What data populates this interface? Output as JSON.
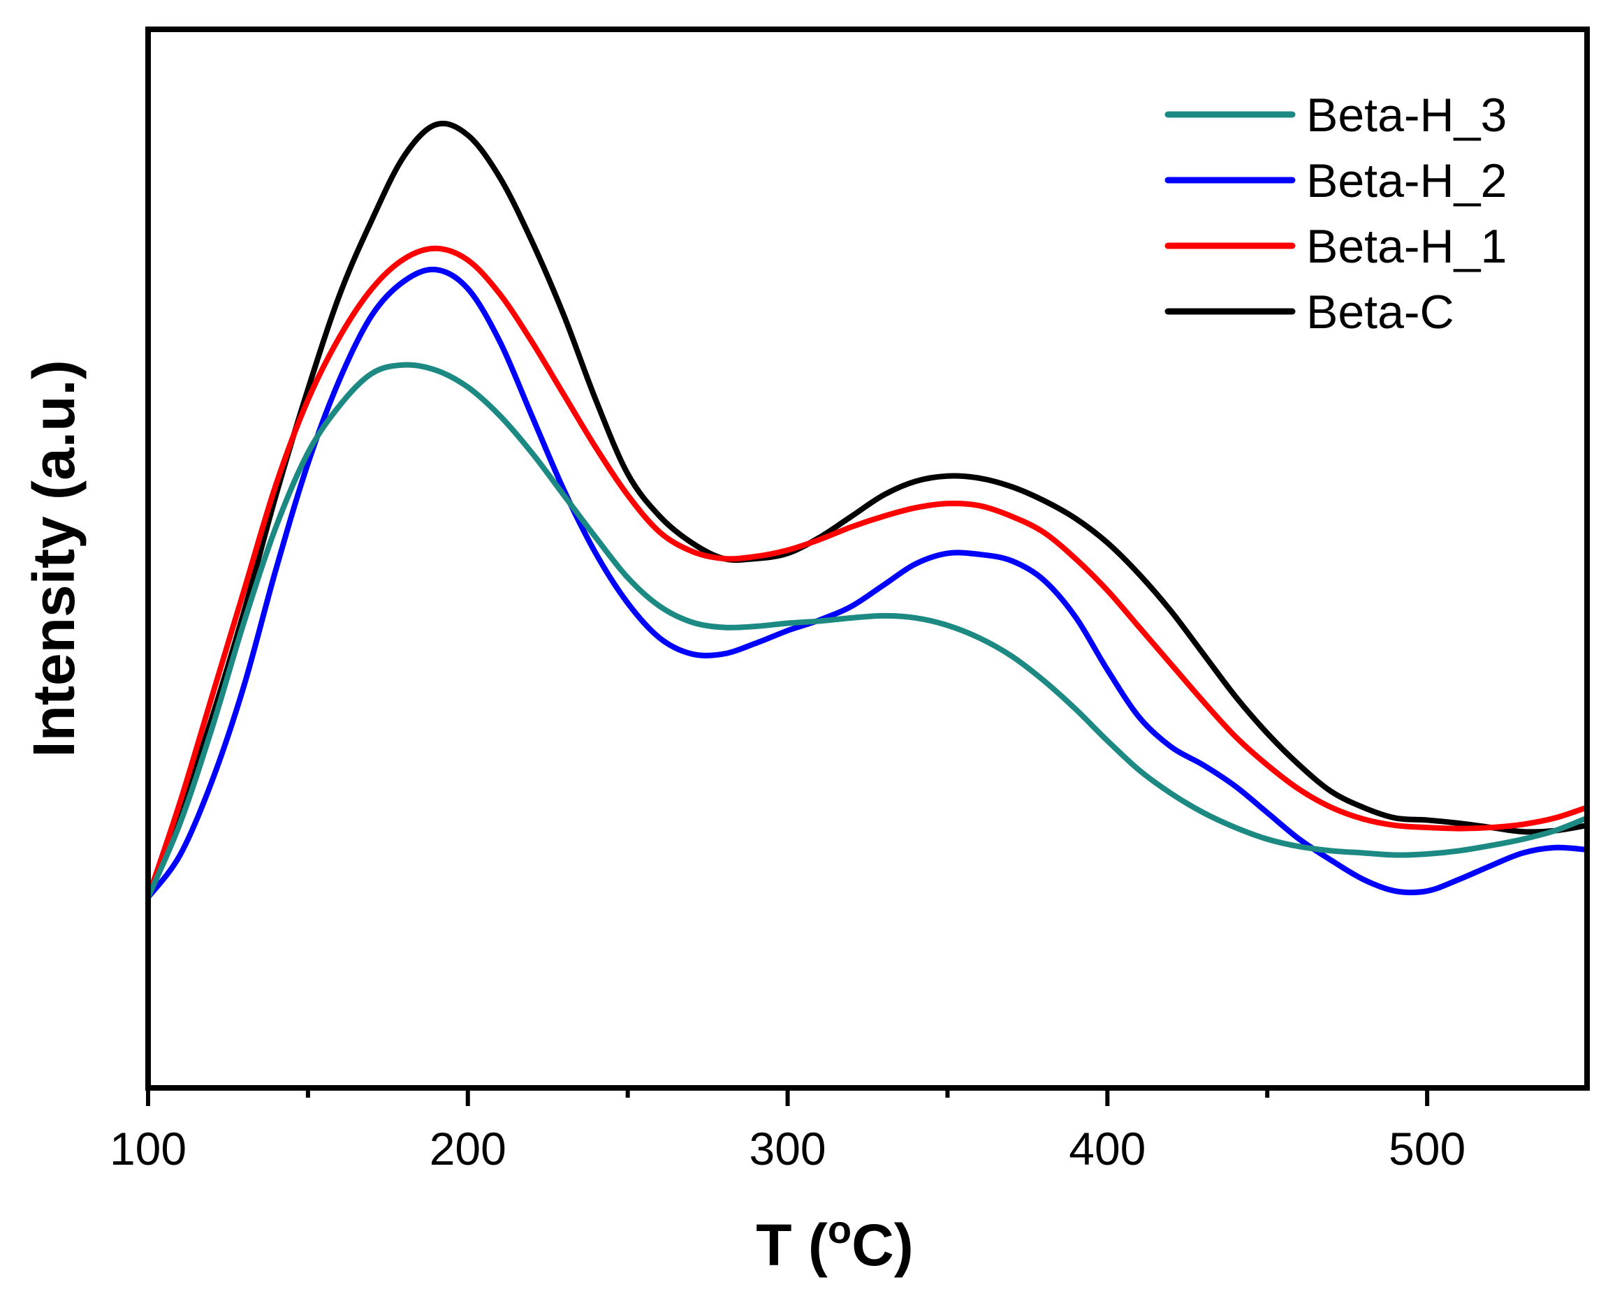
{
  "chart_data": {
    "type": "line",
    "title": "",
    "xlabel": "T (°C)",
    "xlabel_main": "T (",
    "xlabel_sup": "o",
    "xlabel_end": "C)",
    "ylabel": "Intensity (a.u.)",
    "xlim": [
      100,
      550
    ],
    "ylim": [
      0,
      100
    ],
    "xticks": [
      100,
      200,
      300,
      400,
      500
    ],
    "xtick_labels": [
      "100",
      "200",
      "300",
      "400",
      "500"
    ],
    "minor_xticks": [
      150,
      250,
      350,
      450
    ],
    "yticks_shown": false,
    "grid": false,
    "legend_position": "top-right",
    "legend_order": [
      3,
      2,
      1,
      0
    ],
    "series": [
      {
        "name": "Beta-C",
        "color": "#000000",
        "points": [
          [
            100,
            18
          ],
          [
            110,
            26
          ],
          [
            120,
            35
          ],
          [
            130,
            45
          ],
          [
            140,
            56
          ],
          [
            150,
            66
          ],
          [
            160,
            75
          ],
          [
            170,
            82
          ],
          [
            180,
            88
          ],
          [
            190,
            91
          ],
          [
            200,
            90
          ],
          [
            210,
            86
          ],
          [
            220,
            80
          ],
          [
            230,
            73
          ],
          [
            240,
            65
          ],
          [
            250,
            58
          ],
          [
            260,
            54
          ],
          [
            270,
            51.5
          ],
          [
            280,
            50
          ],
          [
            290,
            50
          ],
          [
            300,
            50.5
          ],
          [
            310,
            52
          ],
          [
            320,
            54
          ],
          [
            330,
            56
          ],
          [
            340,
            57.3
          ],
          [
            350,
            57.8
          ],
          [
            360,
            57.6
          ],
          [
            370,
            56.8
          ],
          [
            380,
            55.5
          ],
          [
            390,
            53.8
          ],
          [
            400,
            51.5
          ],
          [
            410,
            48.5
          ],
          [
            420,
            45
          ],
          [
            430,
            41
          ],
          [
            440,
            37
          ],
          [
            450,
            33.5
          ],
          [
            460,
            30.5
          ],
          [
            470,
            28
          ],
          [
            480,
            26.5
          ],
          [
            490,
            25.5
          ],
          [
            500,
            25.3
          ],
          [
            510,
            25
          ],
          [
            520,
            24.6
          ],
          [
            530,
            24.2
          ],
          [
            540,
            24.3
          ],
          [
            550,
            24.8
          ]
        ]
      },
      {
        "name": "Beta-H_1",
        "color": "#ff0000",
        "points": [
          [
            100,
            18
          ],
          [
            110,
            27
          ],
          [
            120,
            37
          ],
          [
            130,
            47
          ],
          [
            140,
            57
          ],
          [
            150,
            65
          ],
          [
            160,
            71
          ],
          [
            170,
            75.5
          ],
          [
            180,
            78.3
          ],
          [
            190,
            79.3
          ],
          [
            200,
            78.2
          ],
          [
            210,
            75
          ],
          [
            220,
            70.5
          ],
          [
            230,
            65.5
          ],
          [
            240,
            60.5
          ],
          [
            250,
            56
          ],
          [
            260,
            52.5
          ],
          [
            270,
            50.7
          ],
          [
            280,
            50
          ],
          [
            290,
            50.2
          ],
          [
            300,
            50.8
          ],
          [
            310,
            51.8
          ],
          [
            320,
            53
          ],
          [
            330,
            54
          ],
          [
            340,
            54.8
          ],
          [
            350,
            55.2
          ],
          [
            360,
            55
          ],
          [
            370,
            54
          ],
          [
            380,
            52.5
          ],
          [
            390,
            50
          ],
          [
            400,
            47
          ],
          [
            410,
            43.5
          ],
          [
            420,
            40
          ],
          [
            430,
            36.5
          ],
          [
            440,
            33.2
          ],
          [
            450,
            30.5
          ],
          [
            460,
            28.2
          ],
          [
            470,
            26.5
          ],
          [
            480,
            25.4
          ],
          [
            490,
            24.8
          ],
          [
            500,
            24.6
          ],
          [
            510,
            24.5
          ],
          [
            520,
            24.6
          ],
          [
            530,
            24.9
          ],
          [
            540,
            25.5
          ],
          [
            550,
            26.5
          ]
        ]
      },
      {
        "name": "Beta-H_2",
        "color": "#0000ff",
        "points": [
          [
            100,
            18
          ],
          [
            110,
            22
          ],
          [
            120,
            29
          ],
          [
            130,
            38
          ],
          [
            140,
            49
          ],
          [
            150,
            59
          ],
          [
            160,
            67
          ],
          [
            170,
            73
          ],
          [
            180,
            76.2
          ],
          [
            190,
            77.3
          ],
          [
            200,
            75.5
          ],
          [
            210,
            70.5
          ],
          [
            220,
            63.5
          ],
          [
            230,
            56.5
          ],
          [
            240,
            50.5
          ],
          [
            250,
            45.8
          ],
          [
            260,
            42.5
          ],
          [
            270,
            41
          ],
          [
            280,
            41
          ],
          [
            290,
            42
          ],
          [
            300,
            43.2
          ],
          [
            310,
            44.2
          ],
          [
            320,
            45.5
          ],
          [
            330,
            47.5
          ],
          [
            340,
            49.5
          ],
          [
            350,
            50.5
          ],
          [
            360,
            50.4
          ],
          [
            370,
            49.8
          ],
          [
            380,
            48
          ],
          [
            390,
            44.5
          ],
          [
            400,
            39.5
          ],
          [
            410,
            35
          ],
          [
            420,
            32.2
          ],
          [
            430,
            30.5
          ],
          [
            440,
            28.5
          ],
          [
            450,
            26
          ],
          [
            460,
            23.5
          ],
          [
            470,
            21.5
          ],
          [
            480,
            19.7
          ],
          [
            490,
            18.6
          ],
          [
            500,
            18.6
          ],
          [
            510,
            19.7
          ],
          [
            520,
            21
          ],
          [
            530,
            22.2
          ],
          [
            540,
            22.7
          ],
          [
            550,
            22.5
          ]
        ]
      },
      {
        "name": "Beta-H_3",
        "color": "#1c8a83",
        "points": [
          [
            100,
            18
          ],
          [
            110,
            25
          ],
          [
            120,
            34
          ],
          [
            130,
            44
          ],
          [
            140,
            53
          ],
          [
            150,
            60
          ],
          [
            160,
            64.5
          ],
          [
            170,
            67.5
          ],
          [
            180,
            68.3
          ],
          [
            190,
            67.8
          ],
          [
            200,
            66.2
          ],
          [
            210,
            63.5
          ],
          [
            220,
            60
          ],
          [
            230,
            56
          ],
          [
            240,
            52
          ],
          [
            250,
            48.2
          ],
          [
            260,
            45.5
          ],
          [
            270,
            44
          ],
          [
            280,
            43.5
          ],
          [
            290,
            43.6
          ],
          [
            300,
            43.9
          ],
          [
            310,
            44.1
          ],
          [
            320,
            44.4
          ],
          [
            330,
            44.6
          ],
          [
            340,
            44.4
          ],
          [
            350,
            43.7
          ],
          [
            360,
            42.5
          ],
          [
            370,
            40.8
          ],
          [
            380,
            38.5
          ],
          [
            390,
            35.8
          ],
          [
            400,
            32.8
          ],
          [
            410,
            30
          ],
          [
            420,
            27.8
          ],
          [
            430,
            26
          ],
          [
            440,
            24.6
          ],
          [
            450,
            23.5
          ],
          [
            460,
            22.8
          ],
          [
            470,
            22.4
          ],
          [
            480,
            22.2
          ],
          [
            490,
            22
          ],
          [
            500,
            22.1
          ],
          [
            510,
            22.4
          ],
          [
            520,
            22.9
          ],
          [
            530,
            23.5
          ],
          [
            540,
            24.3
          ],
          [
            550,
            25.5
          ]
        ]
      }
    ]
  }
}
